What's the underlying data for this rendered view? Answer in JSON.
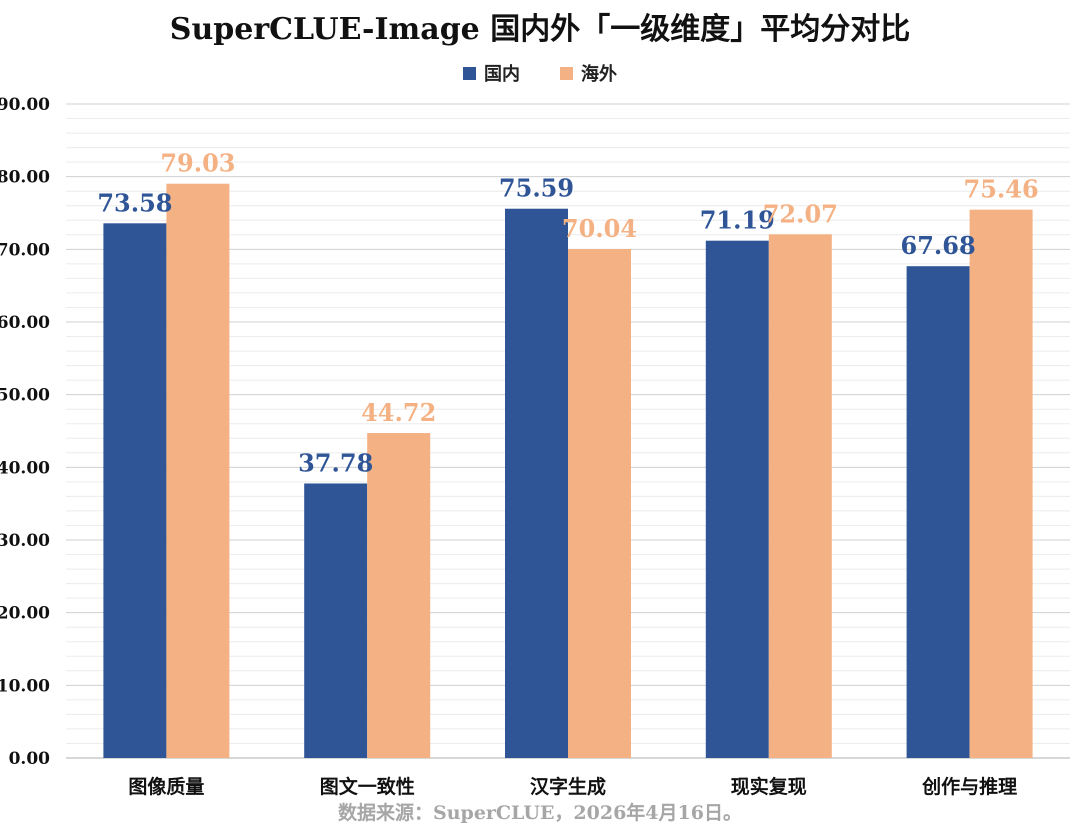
{
  "chart_data": {
    "type": "bar",
    "title": "SuperCLUE-Image 国内外「一级维度」平均分对比",
    "categories": [
      "图像质量",
      "图文一致性",
      "汉字生成",
      "现实复现",
      "创作与推理"
    ],
    "series": [
      {
        "name": "国内",
        "color": "#2f5597",
        "label_color": "#2f5597",
        "values": [
          73.58,
          37.78,
          75.59,
          71.19,
          67.68
        ]
      },
      {
        "name": "海外",
        "color": "#f4b183",
        "label_color": "#f4b183",
        "values": [
          79.03,
          44.72,
          70.04,
          72.07,
          75.46
        ]
      }
    ],
    "ylim": [
      0,
      90
    ],
    "yticks": [
      "0.00",
      "10.00",
      "20.00",
      "30.00",
      "40.00",
      "50.00",
      "60.00",
      "70.00",
      "80.00",
      "90.00"
    ],
    "xlabel": "",
    "ylabel": "",
    "grid": true,
    "legend_position": "top-center",
    "source": "数据来源：SuperCLUE，2026年4月16日。"
  }
}
